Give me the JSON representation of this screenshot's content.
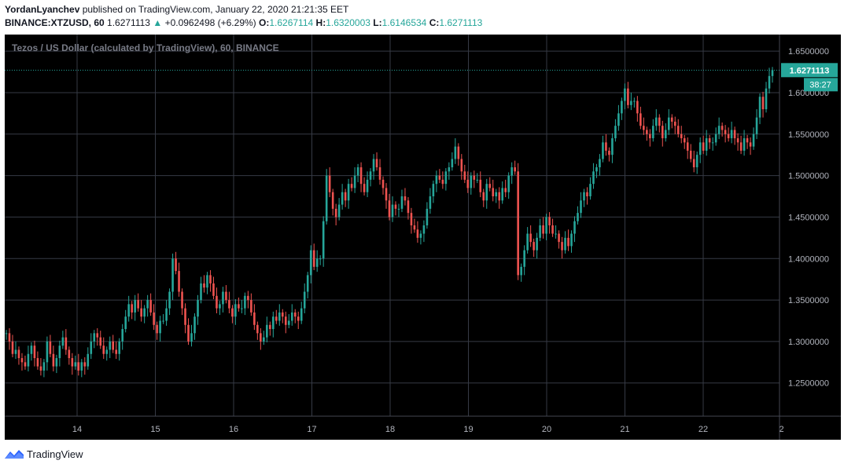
{
  "header": {
    "author": "YordanLyanchev",
    "published_text": " published on TradingView.com, January 22, 2020 21:21:35 EET",
    "symbol": "BINANCE:XTZUSD, 60",
    "last_price": "1.6271113",
    "change_arrow": "▲",
    "change": "+0.0962498 (+6.29%)",
    "o_label": "O:",
    "o_value": "1.6267114",
    "h_label": "H:",
    "h_value": "1.6320003",
    "l_label": "L:",
    "l_value": "1.6146534",
    "c_label": "C:",
    "c_value": "1.6271113"
  },
  "footer": {
    "brand": "TradingView"
  },
  "colors": {
    "up": "#26a69a",
    "down": "#ef5350",
    "grid": "#363a45",
    "axis_text": "#b2b5be",
    "bg": "#000000"
  },
  "chart_data": {
    "type": "candlestick",
    "title": "Tezos / US Dollar (calculated by TradingView), 60, BINANCE",
    "ylim": [
      1.21,
      1.67
    ],
    "yticks": [
      "1.6500000",
      "1.6000000",
      "1.5500000",
      "1.5000000",
      "1.4500000",
      "1.4000000",
      "1.3500000",
      "1.3000000",
      "1.2500000"
    ],
    "xticks": [
      "14",
      "15",
      "16",
      "17",
      "18",
      "19",
      "20",
      "21",
      "22",
      "2"
    ],
    "last_price_label": "1.6271113",
    "countdown_label": "38:27",
    "series": [
      {
        "day": "13",
        "values": [
          1.31,
          1.3,
          1.285,
          1.29,
          1.28,
          1.275,
          1.27,
          1.285,
          1.295,
          1.28,
          1.27,
          1.265,
          1.275,
          1.3,
          1.285,
          1.27,
          1.28,
          1.295,
          1.305,
          1.29,
          1.28,
          1.27,
          1.275,
          1.265,
          1.275
        ]
      },
      {
        "day": "14",
        "values": [
          1.27,
          1.285,
          1.3,
          1.31,
          1.305,
          1.295,
          1.285,
          1.29,
          1.3,
          1.29,
          1.285,
          1.3,
          1.315,
          1.33,
          1.345,
          1.335,
          1.35,
          1.34,
          1.33,
          1.34,
          1.35,
          1.335,
          1.32,
          1.31,
          1.325
        ]
      },
      {
        "day": "15",
        "values": [
          1.325,
          1.34,
          1.36,
          1.4,
          1.385,
          1.36,
          1.34,
          1.32,
          1.3,
          1.31,
          1.33,
          1.35,
          1.37,
          1.365,
          1.38,
          1.37,
          1.355,
          1.34,
          1.345,
          1.36,
          1.35,
          1.34,
          1.33,
          1.345,
          1.34
        ]
      },
      {
        "day": "16",
        "values": [
          1.34,
          1.355,
          1.35,
          1.335,
          1.32,
          1.31,
          1.3,
          1.305,
          1.32,
          1.315,
          1.33,
          1.325,
          1.335,
          1.33,
          1.32,
          1.325,
          1.335,
          1.33,
          1.325,
          1.34,
          1.36,
          1.38,
          1.41,
          1.39,
          1.4
        ]
      },
      {
        "day": "17",
        "values": [
          1.4,
          1.445,
          1.5,
          1.48,
          1.46,
          1.45,
          1.465,
          1.48,
          1.47,
          1.49,
          1.485,
          1.5,
          1.51,
          1.49,
          1.48,
          1.495,
          1.505,
          1.52,
          1.51,
          1.495,
          1.485,
          1.47,
          1.45,
          1.465,
          1.46
        ]
      },
      {
        "day": "18",
        "values": [
          1.46,
          1.475,
          1.47,
          1.455,
          1.44,
          1.435,
          1.425,
          1.43,
          1.44,
          1.46,
          1.475,
          1.49,
          1.5,
          1.495,
          1.49,
          1.505,
          1.51,
          1.52,
          1.535,
          1.52,
          1.505,
          1.495,
          1.485,
          1.5,
          1.495
        ]
      },
      {
        "day": "19",
        "values": [
          1.495,
          1.48,
          1.47,
          1.49,
          1.485,
          1.475,
          1.48,
          1.47,
          1.485,
          1.48,
          1.5,
          1.51,
          1.505,
          1.38,
          1.39,
          1.41,
          1.43,
          1.42,
          1.41,
          1.425,
          1.44,
          1.43,
          1.45,
          1.44,
          1.43
        ]
      },
      {
        "day": "20",
        "values": [
          1.43,
          1.42,
          1.41,
          1.425,
          1.415,
          1.43,
          1.445,
          1.455,
          1.47,
          1.48,
          1.475,
          1.49,
          1.505,
          1.51,
          1.52,
          1.54,
          1.53,
          1.525,
          1.545,
          1.56,
          1.575,
          1.59,
          1.605,
          1.585,
          1.59
        ]
      },
      {
        "day": "21",
        "values": [
          1.59,
          1.575,
          1.56,
          1.555,
          1.55,
          1.545,
          1.56,
          1.57,
          1.56,
          1.545,
          1.555,
          1.57,
          1.565,
          1.56,
          1.55,
          1.545,
          1.54,
          1.53,
          1.52,
          1.51,
          1.525,
          1.54,
          1.53,
          1.545,
          1.54
        ]
      },
      {
        "day": "22",
        "values": [
          1.54,
          1.55,
          1.56,
          1.555,
          1.55,
          1.545,
          1.555,
          1.545,
          1.54,
          1.53,
          1.545,
          1.54,
          1.535,
          1.55,
          1.57,
          1.595,
          1.58,
          1.605,
          1.62,
          1.627
        ]
      }
    ]
  }
}
